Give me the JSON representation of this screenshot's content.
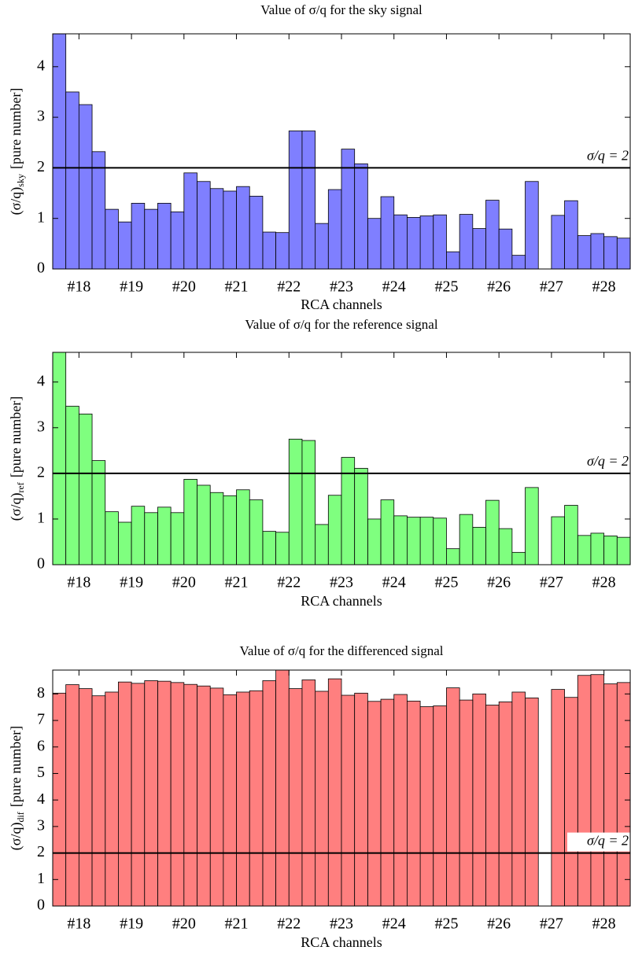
{
  "chart_data": [
    {
      "type": "bar",
      "title": "Value of σ/q for the sky signal",
      "xlabel": "RCA channels",
      "ylabel": "(σ/q)",
      "ylabel_subscript": "sky",
      "ylabel_suffix": "[pure number]",
      "categories": [
        "#18",
        "#19",
        "#20",
        "#21",
        "#22",
        "#23",
        "#24",
        "#25",
        "#26",
        "#27",
        "#28"
      ],
      "color": "#7f7fff",
      "series": [
        {
          "values": [
            4.65,
            1.18,
            1.3,
            1.59,
            0.73,
            0.9,
            1.0,
            1.05,
            0.8,
            1.73,
            0.66
          ]
        },
        {
          "values": [
            3.5,
            0.93,
            1.13,
            1.54,
            0.72,
            1.57,
            1.43,
            1.07,
            1.36,
            null,
            0.7
          ]
        },
        {
          "values": [
            3.25,
            1.3,
            1.9,
            1.63,
            2.73,
            2.37,
            1.07,
            0.34,
            0.79,
            1.06,
            0.64
          ]
        },
        {
          "values": [
            2.32,
            1.18,
            1.73,
            1.44,
            2.73,
            2.08,
            1.02,
            1.08,
            0.27,
            1.35,
            0.61
          ]
        }
      ],
      "ylim": [
        0,
        4.65
      ],
      "yticks": [
        0,
        1,
        2,
        3,
        4
      ],
      "hline": {
        "value": 2,
        "label": "σ/q = 2"
      }
    },
    {
      "type": "bar",
      "title": "Value of σ/q for the reference signal",
      "xlabel": "RCA channels",
      "ylabel": "(σ/q)",
      "ylabel_subscript": "ref",
      "ylabel_suffix": "[pure number]",
      "categories": [
        "#18",
        "#19",
        "#20",
        "#21",
        "#22",
        "#23",
        "#24",
        "#25",
        "#26",
        "#27",
        "#28"
      ],
      "color": "#7fff7f",
      "series": [
        {
          "values": [
            4.65,
            1.16,
            1.26,
            1.58,
            0.73,
            0.88,
            1.0,
            1.04,
            0.82,
            1.69,
            0.64
          ]
        },
        {
          "values": [
            3.47,
            0.93,
            1.14,
            1.51,
            0.71,
            1.52,
            1.42,
            1.02,
            1.41,
            null,
            0.69
          ]
        },
        {
          "values": [
            3.3,
            1.28,
            1.87,
            1.64,
            2.75,
            2.35,
            1.07,
            0.35,
            0.79,
            1.05,
            0.63
          ]
        },
        {
          "values": [
            2.28,
            1.14,
            1.74,
            1.42,
            2.72,
            2.11,
            1.04,
            1.1,
            0.27,
            1.3,
            0.6
          ]
        }
      ],
      "ylim": [
        0,
        4.65
      ],
      "yticks": [
        0,
        1,
        2,
        3,
        4
      ],
      "hline": {
        "value": 2,
        "label": "σ/q = 2"
      }
    },
    {
      "type": "bar",
      "title": "Value of σ/q for the differenced signal",
      "xlabel": "RCA channels",
      "ylabel": "(σ/q)",
      "ylabel_subscript": "dif",
      "ylabel_suffix": "[pure number]",
      "categories": [
        "#18",
        "#19",
        "#20",
        "#21",
        "#22",
        "#23",
        "#24",
        "#25",
        "#26",
        "#27",
        "#28"
      ],
      "color": "#ff7f7f",
      "series": [
        {
          "values": [
            8.03,
            8.07,
            8.48,
            8.22,
            8.5,
            8.1,
            7.72,
            7.52,
            8.0,
            7.85,
            8.7
          ]
        },
        {
          "values": [
            8.35,
            8.45,
            8.43,
            7.97,
            8.95,
            8.57,
            7.8,
            7.55,
            7.58,
            null,
            8.73
          ]
        },
        {
          "values": [
            8.2,
            8.4,
            8.36,
            8.07,
            8.2,
            7.95,
            7.98,
            8.23,
            7.7,
            8.17,
            8.38
          ]
        },
        {
          "values": [
            7.93,
            8.5,
            8.3,
            8.12,
            8.53,
            8.03,
            7.73,
            7.77,
            8.07,
            7.87,
            8.43
          ]
        }
      ],
      "ylim": [
        0,
        8.9
      ],
      "yticks": [
        0,
        1,
        2,
        3,
        4,
        5,
        6,
        7,
        8
      ],
      "hline": {
        "value": 2,
        "label": "σ/q = 2"
      }
    }
  ]
}
